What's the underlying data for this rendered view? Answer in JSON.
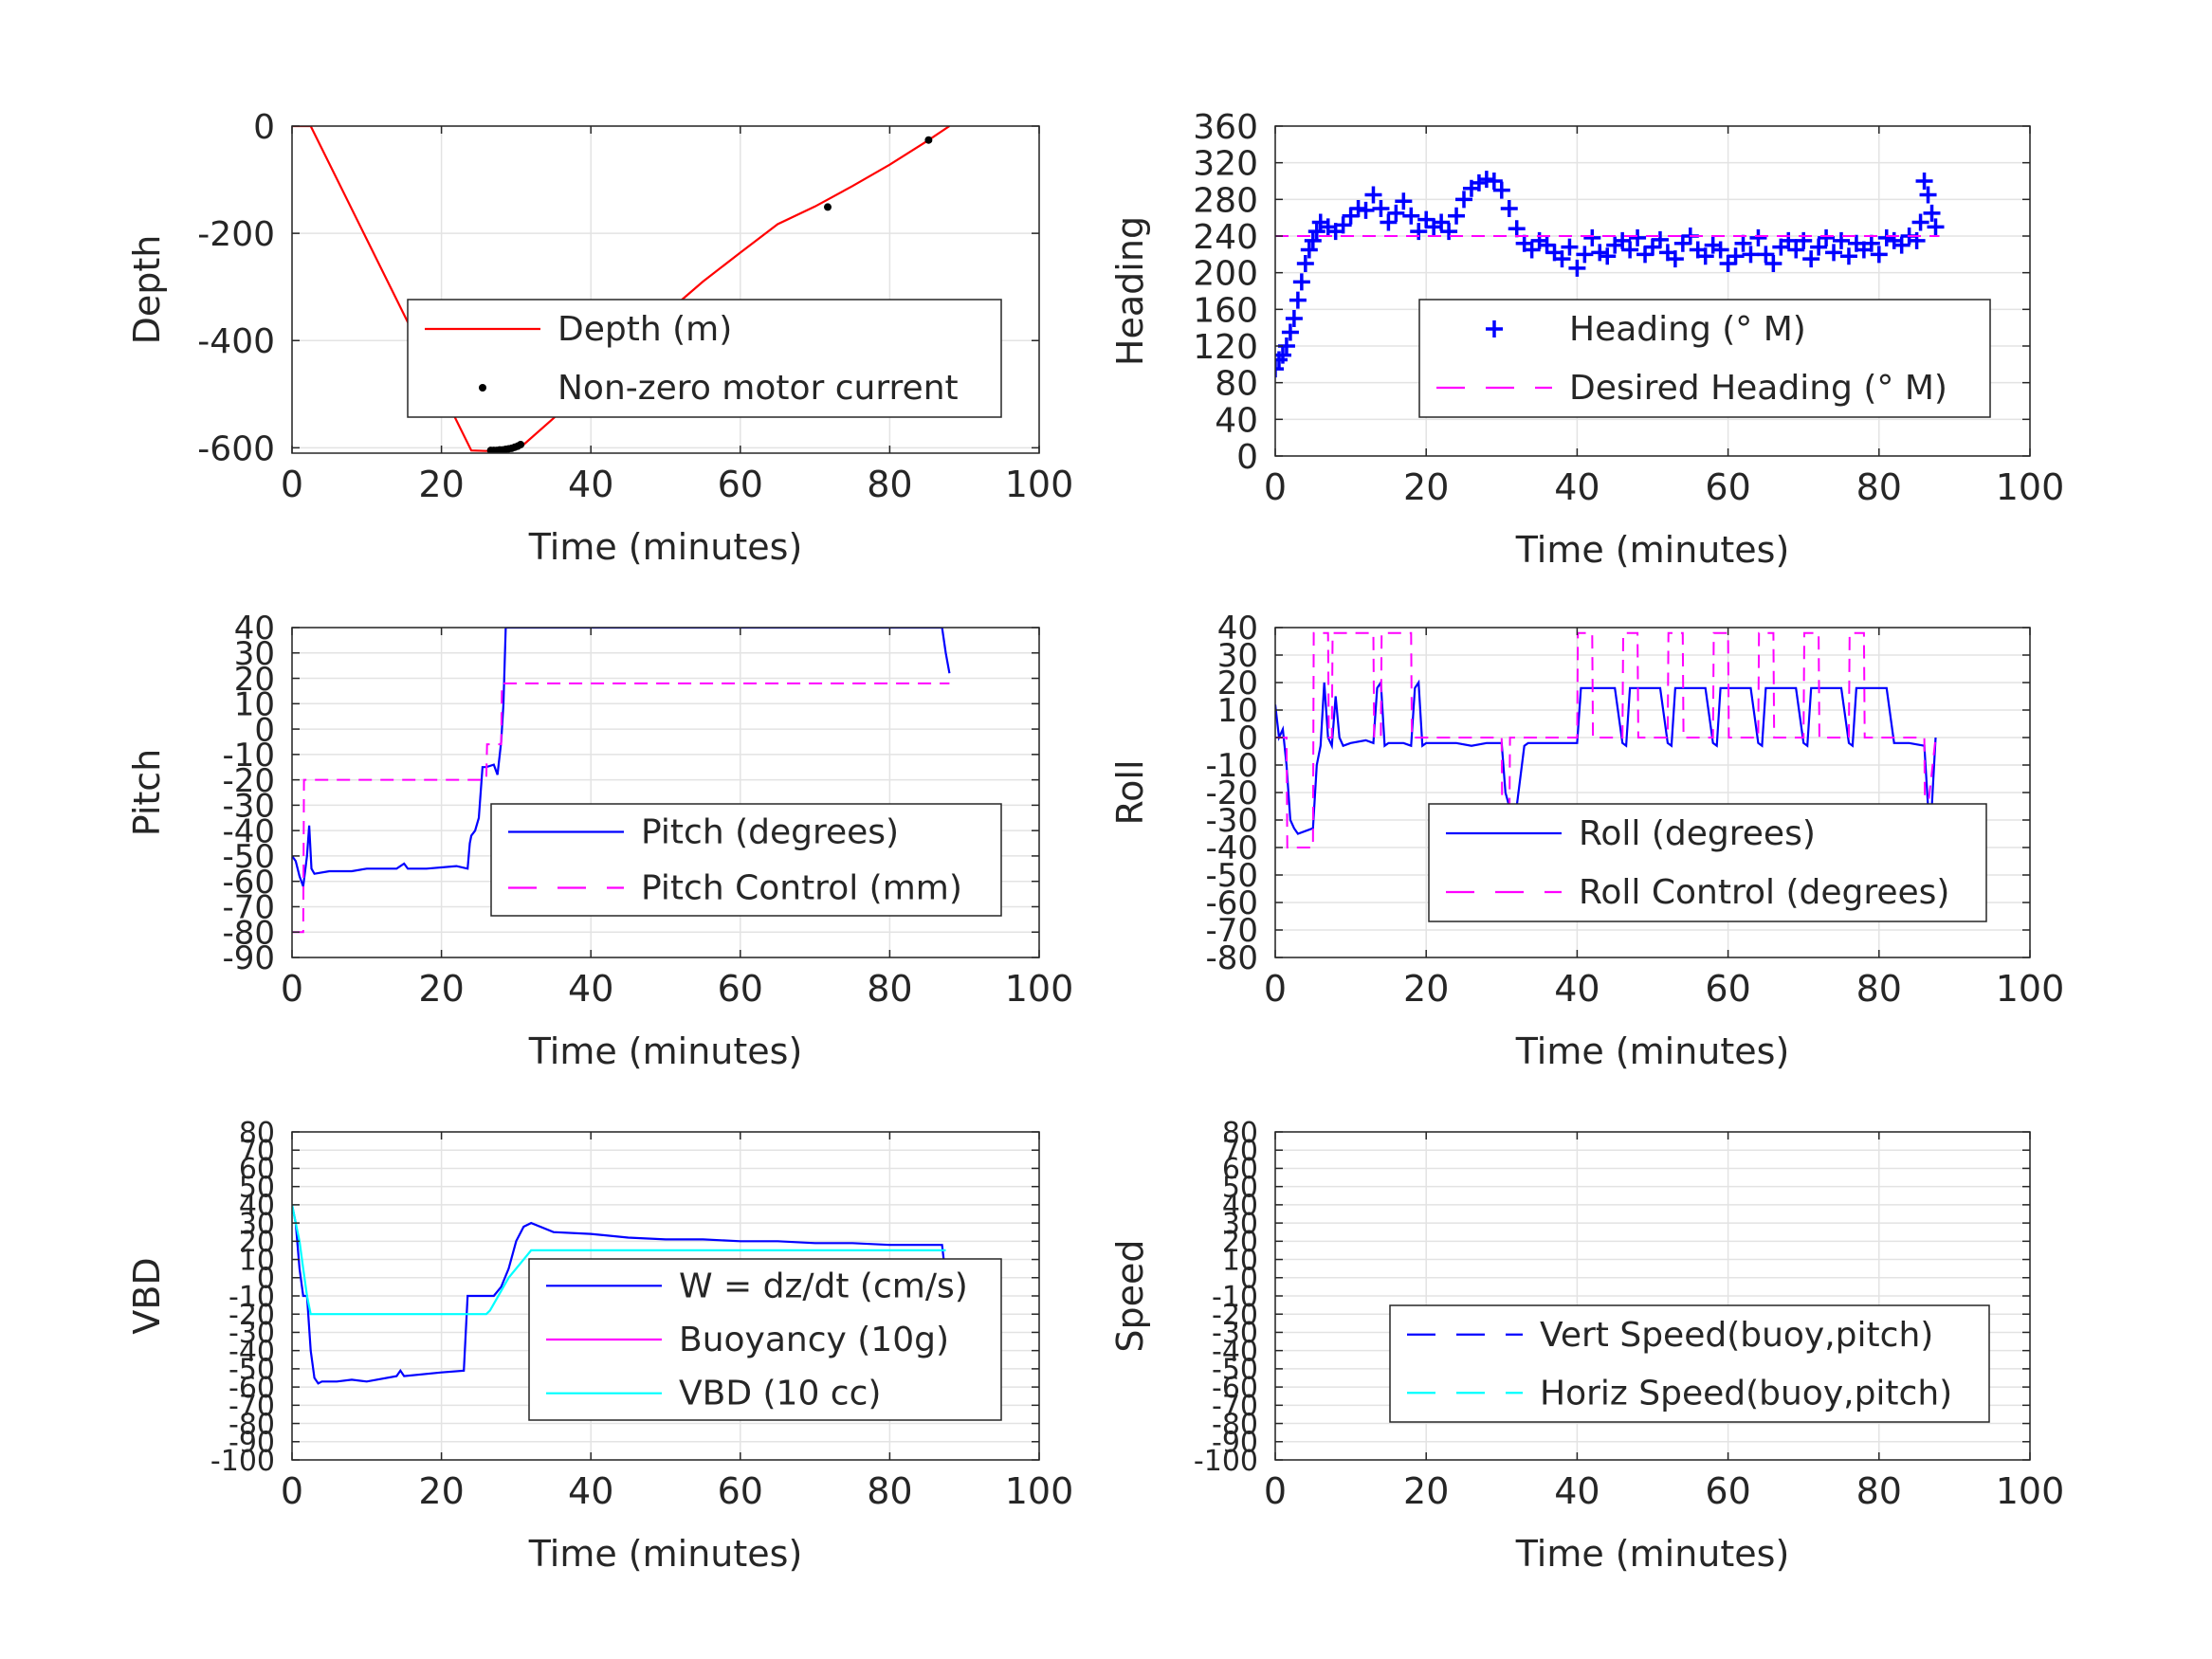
{
  "chart_data": [
    {
      "id": "depth",
      "type": "line",
      "title": "",
      "xlabel": "Time (minutes)",
      "ylabel": "Depth",
      "xlim": [
        0,
        100
      ],
      "ylim": [
        -610,
        0
      ],
      "xticks": [
        0,
        20,
        40,
        60,
        80,
        100
      ],
      "yticks": [
        0,
        -200,
        -400,
        -600
      ],
      "grid": true,
      "legend_position": "center-right",
      "series": [
        {
          "name": "Depth (m)",
          "style": "solid",
          "color": "#ff0000",
          "x": [
            0,
            2.5,
            24,
            26,
            27,
            28,
            29,
            30,
            31,
            35,
            40,
            45,
            50,
            55,
            60,
            65,
            70,
            75,
            80,
            85,
            88
          ],
          "y": [
            0,
            0,
            -605,
            -606,
            -605,
            -604,
            -602,
            -598,
            -594,
            -545,
            -478,
            -414,
            -350,
            -290,
            -236,
            -183,
            -150,
            -112,
            -72,
            -28,
            0
          ]
        },
        {
          "name": "Non-zero motor current",
          "style": "dot",
          "color": "#000000",
          "x": [
            26.6,
            27,
            27.4,
            27.8,
            28.2,
            28.6,
            29,
            29.4,
            29.8,
            30.2,
            30.6,
            71.7,
            85.2
          ],
          "y": [
            -605,
            -605,
            -605,
            -604,
            -604,
            -603,
            -602,
            -601,
            -599,
            -597,
            -594,
            -151,
            -26
          ]
        }
      ]
    },
    {
      "id": "heading",
      "type": "line",
      "title": "",
      "xlabel": "Time (minutes)",
      "ylabel": "Heading",
      "xlim": [
        0,
        100
      ],
      "ylim": [
        0,
        360
      ],
      "xticks": [
        0,
        20,
        40,
        60,
        80,
        100
      ],
      "yticks": [
        0,
        40,
        80,
        120,
        160,
        200,
        240,
        280,
        320,
        360
      ],
      "grid": true,
      "legend_position": "center-right",
      "series": [
        {
          "name": "Heading (° M)",
          "style": "plus",
          "color": "#0000ff",
          "x": [
            0,
            0.5,
            1,
            1.5,
            2,
            2.5,
            3,
            3.5,
            4,
            4.5,
            5,
            5.5,
            6,
            7,
            8,
            9,
            10,
            11,
            12,
            13,
            14,
            15,
            16,
            17,
            18,
            19,
            20,
            21,
            22,
            23,
            24,
            25,
            26,
            27,
            28,
            29,
            30,
            31,
            32,
            33,
            34,
            35,
            36,
            37,
            38,
            39,
            40,
            41,
            42,
            43,
            44,
            45,
            46,
            47,
            48,
            49,
            50,
            51,
            52,
            53,
            54,
            55,
            56,
            57,
            58,
            59,
            60,
            61,
            62,
            63,
            64,
            65,
            66,
            67,
            68,
            69,
            70,
            71,
            72,
            73,
            74,
            75,
            76,
            77,
            78,
            79,
            80,
            81,
            82,
            83,
            84,
            85,
            85.5,
            86,
            86.5,
            87,
            87.5
          ],
          "y": [
            95,
            105,
            110,
            120,
            135,
            150,
            170,
            190,
            210,
            225,
            235,
            245,
            255,
            250,
            245,
            252,
            262,
            270,
            268,
            285,
            270,
            255,
            265,
            278,
            262,
            245,
            258,
            250,
            255,
            245,
            262,
            280,
            292,
            298,
            302,
            300,
            290,
            270,
            248,
            232,
            225,
            235,
            230,
            222,
            215,
            228,
            205,
            220,
            238,
            222,
            218,
            230,
            235,
            225,
            238,
            220,
            228,
            236,
            222,
            215,
            232,
            240,
            225,
            218,
            230,
            225,
            210,
            218,
            232,
            220,
            238,
            220,
            210,
            228,
            235,
            225,
            235,
            215,
            228,
            238,
            222,
            235,
            218,
            232,
            225,
            232,
            220,
            238,
            235,
            230,
            240,
            235,
            255,
            300,
            285,
            265,
            250
          ]
        },
        {
          "name": "Desired Heading (° M)",
          "style": "dash",
          "color": "#ff00ff",
          "x": [
            0,
            88
          ],
          "y": [
            240,
            240
          ]
        }
      ]
    },
    {
      "id": "pitch",
      "type": "line",
      "title": "",
      "xlabel": "Time (minutes)",
      "ylabel": "Pitch",
      "xlim": [
        0,
        100
      ],
      "ylim": [
        -90,
        40
      ],
      "xticks": [
        0,
        20,
        40,
        60,
        80,
        100
      ],
      "yticks": [
        -90,
        -80,
        -70,
        -60,
        -50,
        -40,
        -30,
        -20,
        -10,
        0,
        10,
        20,
        30,
        40
      ],
      "grid": true,
      "legend_position": "center-right",
      "series": [
        {
          "name": "Pitch (degrees)",
          "style": "solid",
          "color": "#0000ff",
          "x": [
            0,
            0.5,
            1,
            1.5,
            2,
            2.3,
            2.6,
            3,
            5,
            8,
            10,
            14,
            15,
            15.5,
            18,
            22,
            23.5,
            23.8,
            24,
            24.5,
            25,
            25.5,
            26,
            27,
            27.5,
            28,
            28.3,
            28.6,
            86.5,
            87,
            87.5,
            88
          ],
          "y": [
            -50,
            -52,
            -58,
            -62,
            -50,
            -38,
            -55,
            -57,
            -56,
            -56,
            -55,
            -55,
            -53,
            -55,
            -55,
            -54,
            -55,
            -45,
            -42,
            -40,
            -35,
            -15,
            -15,
            -14,
            -18,
            -5,
            10,
            40,
            40,
            40,
            30,
            22
          ]
        },
        {
          "name": "Pitch Control (mm)",
          "style": "dash",
          "color": "#ff00ff",
          "x": [
            0,
            1.5,
            1.6,
            5,
            20,
            26,
            26.1,
            28,
            28.1,
            40,
            60,
            80,
            88
          ],
          "y": [
            -80,
            -80,
            -20,
            -20,
            -20,
            -20,
            -6,
            -6,
            18,
            18,
            18,
            18,
            18
          ]
        }
      ]
    },
    {
      "id": "roll",
      "type": "line",
      "title": "",
      "xlabel": "Time (minutes)",
      "ylabel": "Roll",
      "xlim": [
        0,
        100
      ],
      "ylim": [
        -80,
        40
      ],
      "xticks": [
        0,
        20,
        40,
        60,
        80,
        100
      ],
      "yticks": [
        -80,
        -70,
        -60,
        -50,
        -40,
        -30,
        -20,
        -10,
        0,
        10,
        20,
        30,
        40
      ],
      "grid": true,
      "legend_position": "center-right",
      "series": [
        {
          "name": "Roll (degrees)",
          "style": "solid",
          "color": "#0000ff",
          "x": [
            0,
            0.5,
            1,
            1.5,
            2,
            2.5,
            3,
            5,
            5.5,
            6,
            6.5,
            7,
            7.5,
            8,
            8.5,
            9,
            10,
            12,
            13,
            13.5,
            14,
            14.5,
            15,
            17,
            18,
            18.5,
            19,
            19.5,
            20,
            22,
            24,
            26,
            28,
            30,
            30.5,
            31,
            32,
            33,
            33.5,
            34,
            36,
            38,
            40,
            40.5,
            41,
            45,
            46,
            46.5,
            47,
            51,
            52,
            52.5,
            53,
            57,
            58,
            58.5,
            59,
            63,
            64,
            64.5,
            65,
            69,
            70,
            70.5,
            71,
            75,
            76,
            76.5,
            77,
            81,
            82,
            84,
            86,
            86.5,
            87,
            87.5
          ],
          "y": [
            12,
            0,
            3,
            -10,
            -30,
            -33,
            -35,
            -33,
            -10,
            -3,
            20,
            0,
            -3,
            15,
            0,
            -3,
            -2,
            -1,
            -2,
            18,
            20,
            -3,
            -2,
            -2,
            -3,
            18,
            20,
            -3,
            -2,
            -2,
            -2,
            -3,
            -2,
            -2,
            -20,
            -25,
            -25,
            -3,
            -2,
            -2,
            -2,
            -2,
            -2,
            18,
            18,
            18,
            -2,
            -3,
            18,
            18,
            -2,
            -3,
            18,
            18,
            -2,
            -3,
            18,
            18,
            -2,
            -3,
            18,
            18,
            -2,
            -3,
            18,
            18,
            -2,
            -3,
            18,
            18,
            -2,
            -2,
            -3,
            -25,
            -25,
            0
          ]
        },
        {
          "name": "Roll Control (degrees)",
          "style": "dash",
          "color": "#ff00ff",
          "x": [
            0,
            1.5,
            1.6,
            5,
            5.1,
            7,
            7.1,
            7.5,
            7.6,
            13,
            13.1,
            14,
            14.1,
            18,
            18.1,
            19,
            19.1,
            30,
            30.1,
            31,
            31.1,
            33,
            33.1,
            40,
            40.1,
            42,
            42.1,
            46,
            46.1,
            48,
            48.1,
            52,
            52.1,
            54,
            54.1,
            58,
            58.1,
            60,
            60.1,
            64,
            64.1,
            66,
            66.1,
            70,
            70.1,
            72,
            72.1,
            76,
            76.1,
            78,
            78.1,
            82,
            82.1,
            86,
            86.1,
            87.5
          ],
          "y": [
            0,
            0,
            -40,
            -40,
            38,
            38,
            0,
            0,
            38,
            38,
            0,
            0,
            38,
            38,
            0,
            0,
            0,
            0,
            -40,
            -40,
            0,
            0,
            0,
            0,
            38,
            38,
            0,
            0,
            38,
            38,
            0,
            0,
            38,
            38,
            0,
            0,
            38,
            38,
            0,
            0,
            38,
            38,
            0,
            0,
            38,
            38,
            0,
            0,
            38,
            38,
            0,
            0,
            0,
            0,
            -35,
            0
          ]
        }
      ]
    },
    {
      "id": "vbd",
      "type": "line",
      "title": "",
      "xlabel": "Time (minutes)",
      "ylabel": "VBD",
      "xlim": [
        0,
        100
      ],
      "ylim": [
        -100,
        80
      ],
      "xticks": [
        0,
        20,
        40,
        60,
        80,
        100
      ],
      "yticks": [
        -100,
        -90,
        -80,
        -70,
        -60,
        -50,
        -40,
        -30,
        -20,
        -10,
        0,
        10,
        20,
        30,
        40,
        50,
        60,
        70,
        80
      ],
      "grid": true,
      "legend_position": "center-right",
      "series": [
        {
          "name": "W = dz/dt (cm/s)",
          "style": "solid",
          "color": "#0000ff",
          "x": [
            0,
            0.5,
            1,
            1.5,
            2,
            2.5,
            3,
            3.5,
            4,
            6,
            8,
            10,
            14,
            14.5,
            15,
            20,
            23,
            23.5,
            24,
            25,
            26,
            27,
            28,
            29,
            30,
            31,
            32,
            35,
            40,
            45,
            50,
            55,
            60,
            65,
            70,
            75,
            80,
            85,
            87,
            87.5
          ],
          "y": [
            40,
            30,
            5,
            -10,
            -10,
            -40,
            -55,
            -58,
            -57,
            -57,
            -56,
            -57,
            -54,
            -51,
            -54,
            -52,
            -51,
            -10,
            -10,
            -10,
            -10,
            -10,
            -5,
            5,
            20,
            28,
            30,
            25,
            24,
            22,
            21,
            21,
            20,
            20,
            19,
            19,
            18,
            18,
            18,
            0
          ]
        },
        {
          "name": "Buoyancy (10g)",
          "style": "solid",
          "color": "#ff00ff",
          "x": [],
          "y": []
        },
        {
          "name": "VBD (10 cc)",
          "style": "solid",
          "color": "#00ffff",
          "x": [
            0,
            0.5,
            1,
            1.5,
            2,
            2.5,
            3,
            5,
            10,
            20,
            26,
            26.5,
            29,
            31,
            32,
            40,
            60,
            80,
            87.5
          ],
          "y": [
            40,
            30,
            20,
            5,
            -10,
            -20,
            -20,
            -20,
            -20,
            -20,
            -20,
            -18,
            0,
            10,
            15,
            15,
            15,
            15,
            15
          ]
        }
      ]
    },
    {
      "id": "speed",
      "type": "line",
      "title": "",
      "xlabel": "Time (minutes)",
      "ylabel": "Speed",
      "xlim": [
        0,
        100
      ],
      "ylim": [
        -100,
        80
      ],
      "xticks": [
        0,
        20,
        40,
        60,
        80,
        100
      ],
      "yticks": [
        -100,
        -90,
        -80,
        -70,
        -60,
        -50,
        -40,
        -30,
        -20,
        -10,
        0,
        10,
        20,
        30,
        40,
        50,
        60,
        70,
        80
      ],
      "grid": true,
      "legend_position": "bottom-right",
      "series": [
        {
          "name": "Vert Speed(buoy,pitch)",
          "style": "dash",
          "color": "#0000ff",
          "x": [],
          "y": []
        },
        {
          "name": "Horiz Speed(buoy,pitch)",
          "style": "dash",
          "color": "#00ffff",
          "x": [],
          "y": []
        }
      ]
    }
  ]
}
